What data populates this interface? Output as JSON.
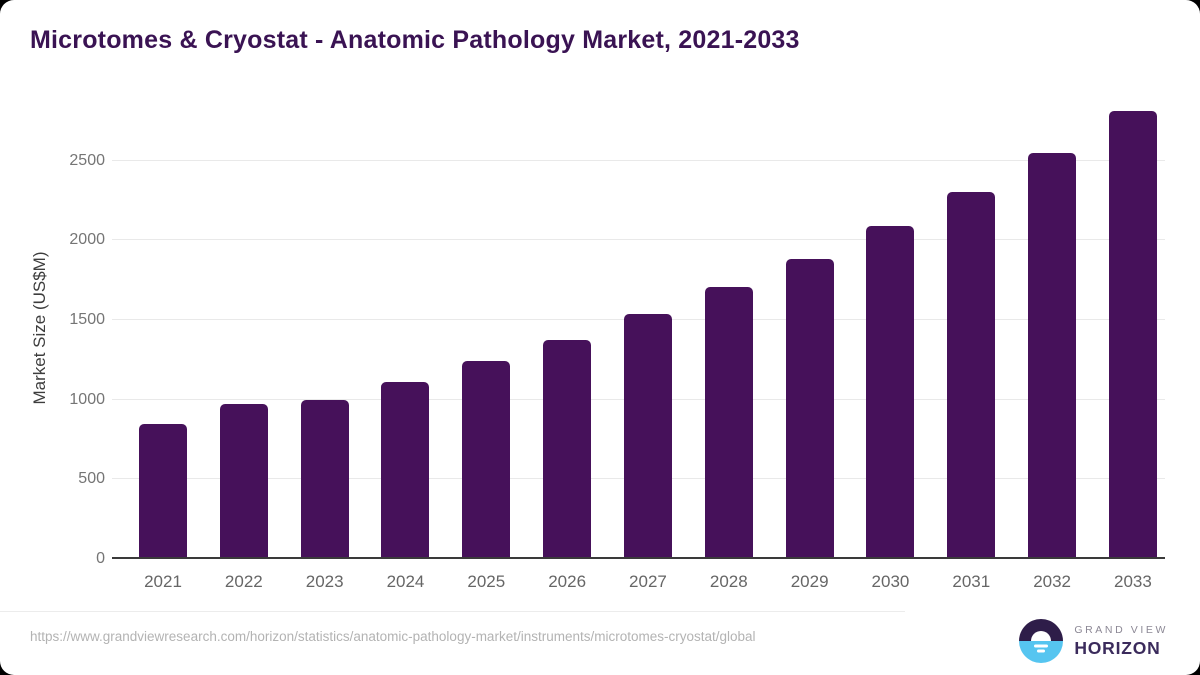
{
  "title": "Microtomes & Cryostat - Anatomic Pathology Market, 2021-2033",
  "chart_data": {
    "type": "bar",
    "categories": [
      "2021",
      "2022",
      "2023",
      "2024",
      "2025",
      "2026",
      "2027",
      "2028",
      "2029",
      "2030",
      "2031",
      "2032",
      "2033"
    ],
    "values": [
      850,
      970,
      1000,
      1110,
      1240,
      1375,
      1535,
      1705,
      1885,
      2090,
      2305,
      2550,
      2815
    ],
    "title": "Microtomes & Cryostat - Anatomic Pathology Market, 2021-2033",
    "xlabel": "",
    "ylabel": "Market Size (US$M)",
    "ylim": [
      0,
      2900
    ],
    "yticks": [
      0,
      500,
      1000,
      1500,
      2000,
      2500
    ],
    "grid": true,
    "legend": false,
    "bar_color": "#46115a"
  },
  "colors": {
    "title_text": "#3a1353",
    "bar": "#46115a",
    "axis_line": "#3a3a3a",
    "gridline": "#e9e9e9",
    "tick_text": "#757575",
    "url_text": "#b3b3b3",
    "logo_dark": "#2e1d49",
    "logo_blue": "#56c5f0"
  },
  "footer": {
    "source_url": "https://www.grandviewresearch.com/horizon/statistics/anatomic-pathology-market/instruments/microtomes-cryostat/global",
    "brand_line1": "GRAND VIEW",
    "brand_line2": "HORIZON"
  }
}
